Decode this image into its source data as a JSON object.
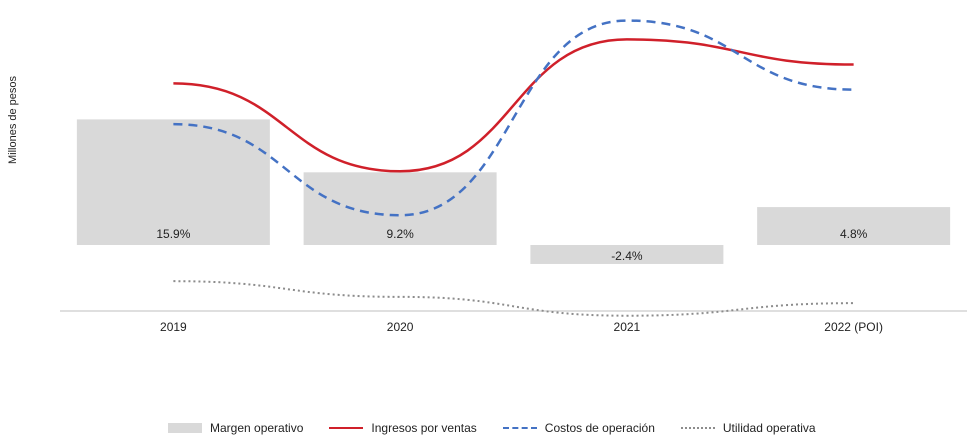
{
  "chart_data": {
    "type": "bar",
    "ylabel": "Millones de pesos",
    "categories": [
      "2019",
      "2020",
      "2021",
      "2022 (POI)"
    ],
    "bar_series": {
      "name": "Margen operativo",
      "values": [
        15.9,
        9.2,
        -2.4,
        4.8
      ],
      "labels": [
        "15.9%",
        "9.2%",
        "-2.4%",
        "4.8%"
      ],
      "color": "#d9d9d9"
    },
    "line_series": [
      {
        "name": "Ingresos por ventas",
        "values": [
          0.76,
          0.48,
          0.9,
          0.82
        ],
        "style": "solid",
        "color": "#d0202a"
      },
      {
        "name": "Costos de operación",
        "values": [
          0.63,
          0.34,
          0.96,
          0.74
        ],
        "style": "dashed",
        "color": "#4472c4"
      },
      {
        "name": "Utilidad operativa",
        "values": [
          0.13,
          0.08,
          0.02,
          0.06
        ],
        "style": "dotted",
        "color": "#8c8c8c"
      }
    ],
    "line_scale": "relative values (no line axis printed)",
    "legend_position": "bottom",
    "grid": false
  }
}
